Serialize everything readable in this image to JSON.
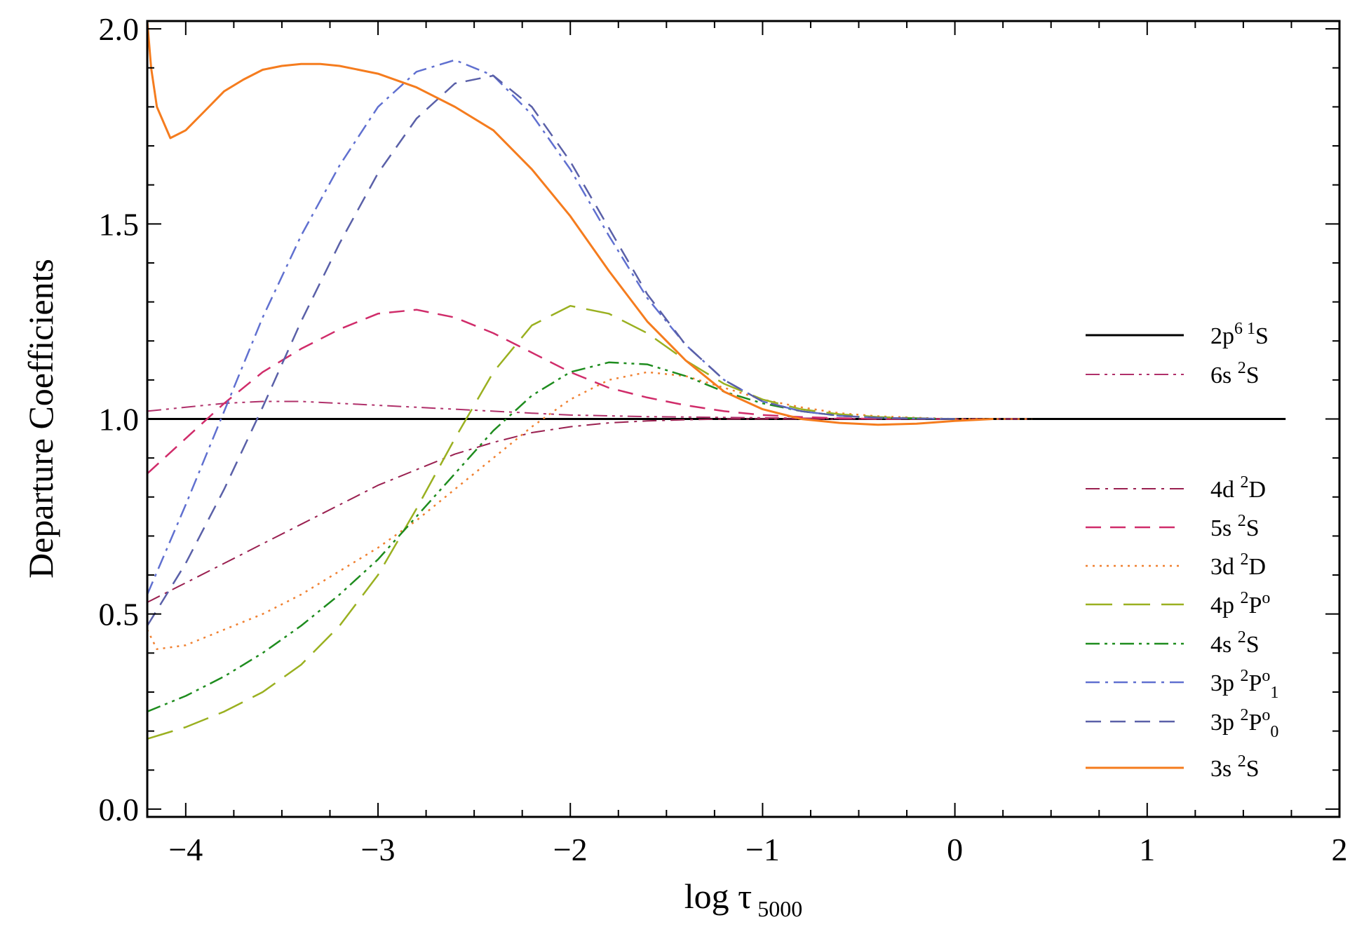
{
  "chart_data": {
    "type": "line",
    "title": "",
    "xlabel": "log τ",
    "xlabel_sub": "5000",
    "ylabel": "Departure Coefficients",
    "xlim": [
      -4.2,
      2
    ],
    "ylim": [
      -0.02,
      2.02
    ],
    "x_ticks": [
      -4,
      -3,
      -2,
      -1,
      0,
      1,
      2
    ],
    "x_tick_labels": [
      "−4",
      "−3",
      "−2",
      "−1",
      "0",
      "1",
      "2"
    ],
    "y_ticks": [
      0.0,
      0.5,
      1.0,
      1.5,
      2.0
    ],
    "y_tick_labels": [
      "0.0",
      "0.5",
      "1.0",
      "1.5",
      "2.0"
    ],
    "grid": false,
    "legend_position": "right",
    "series": [
      {
        "name": "2p6 1S",
        "label_main": "2p",
        "label_sup1": "6 1",
        "label_tail": "S",
        "color": "#000000",
        "dash": "solid",
        "width": 3,
        "x": [
          -4.2,
          1.72
        ],
        "y": [
          1.0,
          1.0
        ]
      },
      {
        "name": "6s 2S",
        "label_main": "6s ",
        "label_sup1": "2",
        "label_tail": "S",
        "color": "#b0306a",
        "dash": "dashdotdot",
        "width": 2,
        "x": [
          -4.2,
          -4.0,
          -3.8,
          -3.6,
          -3.4,
          -3.2,
          -3.0,
          -2.8,
          -2.6,
          -2.4,
          -2.2,
          -2.0,
          -1.8,
          -1.6,
          -1.4,
          -1.2,
          -1.0,
          -0.8,
          -0.6,
          -0.4,
          -0.2,
          0.0,
          0.2,
          0.4
        ],
        "y": [
          1.02,
          1.03,
          1.04,
          1.045,
          1.045,
          1.04,
          1.035,
          1.03,
          1.025,
          1.02,
          1.015,
          1.01,
          1.008,
          1.006,
          1.005,
          1.004,
          1.003,
          1.002,
          1.001,
          1.0,
          1.0,
          1.0,
          1.0,
          1.0
        ]
      },
      {
        "name": "4d 2D",
        "label_main": "4d ",
        "label_sup1": "2",
        "label_tail": "D",
        "color": "#9a2050",
        "dash": "dashdot",
        "width": 2,
        "x": [
          -4.2,
          -4.0,
          -3.8,
          -3.6,
          -3.4,
          -3.2,
          -3.0,
          -2.8,
          -2.6,
          -2.4,
          -2.2,
          -2.0,
          -1.8,
          -1.6,
          -1.4,
          -1.2,
          -1.0,
          -0.8,
          -0.6,
          -0.4,
          -0.2,
          0.0
        ],
        "y": [
          0.53,
          0.58,
          0.63,
          0.68,
          0.73,
          0.78,
          0.83,
          0.87,
          0.91,
          0.94,
          0.965,
          0.98,
          0.99,
          0.995,
          0.998,
          1.0,
          1.0,
          1.0,
          1.0,
          1.0,
          1.0,
          1.0
        ]
      },
      {
        "name": "5s 2S",
        "label_main": "5s ",
        "label_sup1": "2",
        "label_tail": "S",
        "color": "#d02c6a",
        "dash": "dashed",
        "width": 2.5,
        "x": [
          -4.2,
          -4.0,
          -3.8,
          -3.6,
          -3.4,
          -3.2,
          -3.0,
          -2.8,
          -2.6,
          -2.4,
          -2.2,
          -2.0,
          -1.8,
          -1.6,
          -1.4,
          -1.2,
          -1.0,
          -0.8,
          -0.6,
          -0.4,
          -0.2,
          0.0
        ],
        "y": [
          0.86,
          0.95,
          1.04,
          1.12,
          1.18,
          1.23,
          1.27,
          1.28,
          1.26,
          1.22,
          1.17,
          1.12,
          1.08,
          1.055,
          1.035,
          1.02,
          1.01,
          1.005,
          1.002,
          1.0,
          1.0,
          1.0
        ]
      },
      {
        "name": "3d 2D",
        "label_main": "3d ",
        "label_sup1": "2",
        "label_tail": "D",
        "color": "#f08030",
        "dash": "dotted",
        "width": 2.5,
        "x": [
          -4.2,
          -4.15,
          -4.0,
          -3.8,
          -3.6,
          -3.4,
          -3.2,
          -3.0,
          -2.8,
          -2.6,
          -2.4,
          -2.2,
          -2.0,
          -1.8,
          -1.6,
          -1.4,
          -1.2,
          -1.0,
          -0.8,
          -0.6,
          -0.4,
          -0.2,
          0.0,
          0.2,
          0.4
        ],
        "y": [
          0.46,
          0.41,
          0.42,
          0.46,
          0.5,
          0.55,
          0.61,
          0.67,
          0.74,
          0.82,
          0.9,
          0.98,
          1.05,
          1.1,
          1.12,
          1.11,
          1.08,
          1.05,
          1.03,
          1.015,
          1.007,
          1.003,
          1.0,
          1.0,
          1.0
        ]
      },
      {
        "name": "4p 2Po",
        "label_main": "4p ",
        "label_sup1": "2",
        "label_tail": "P",
        "label_sup2": "o",
        "color": "#9ab020",
        "dash": "longdash",
        "width": 2.5,
        "x": [
          -4.2,
          -4.0,
          -3.8,
          -3.6,
          -3.4,
          -3.2,
          -3.0,
          -2.8,
          -2.6,
          -2.4,
          -2.2,
          -2.0,
          -1.8,
          -1.6,
          -1.4,
          -1.2,
          -1.0,
          -0.8,
          -0.6,
          -0.4,
          -0.2,
          0.0
        ],
        "y": [
          0.18,
          0.21,
          0.25,
          0.3,
          0.37,
          0.47,
          0.6,
          0.77,
          0.95,
          1.12,
          1.24,
          1.29,
          1.27,
          1.22,
          1.15,
          1.09,
          1.05,
          1.025,
          1.012,
          1.005,
          1.002,
          1.0
        ]
      },
      {
        "name": "4s 2S",
        "label_main": "4s ",
        "label_sup1": "2",
        "label_tail": "S",
        "color": "#1e8c1e",
        "dash": "dashdotdot",
        "width": 2.5,
        "x": [
          -4.2,
          -4.0,
          -3.8,
          -3.6,
          -3.4,
          -3.2,
          -3.0,
          -2.8,
          -2.6,
          -2.4,
          -2.2,
          -2.0,
          -1.8,
          -1.6,
          -1.4,
          -1.2,
          -1.0,
          -0.8,
          -0.6,
          -0.4,
          -0.2,
          0.0
        ],
        "y": [
          0.25,
          0.29,
          0.34,
          0.4,
          0.47,
          0.55,
          0.64,
          0.75,
          0.86,
          0.97,
          1.06,
          1.12,
          1.145,
          1.14,
          1.11,
          1.07,
          1.04,
          1.02,
          1.008,
          1.003,
          1.001,
          1.0
        ]
      },
      {
        "name": "3p 2Po1",
        "label_main": "3p ",
        "label_sup1": "2",
        "label_tail": "P",
        "label_sup2": "o",
        "label_sub": "1",
        "color": "#6070d0",
        "dash": "dashdot",
        "width": 2.5,
        "x": [
          -4.2,
          -4.0,
          -3.8,
          -3.6,
          -3.4,
          -3.2,
          -3.0,
          -2.8,
          -2.6,
          -2.4,
          -2.2,
          -2.0,
          -1.8,
          -1.6,
          -1.4,
          -1.2,
          -1.0,
          -0.8,
          -0.6,
          -0.4,
          -0.2,
          0.0
        ],
        "y": [
          0.55,
          0.78,
          1.02,
          1.26,
          1.47,
          1.65,
          1.8,
          1.89,
          1.92,
          1.88,
          1.78,
          1.64,
          1.47,
          1.31,
          1.19,
          1.1,
          1.045,
          1.02,
          1.008,
          1.003,
          1.001,
          1.0
        ]
      },
      {
        "name": "3p 2Po0",
        "label_main": "3p ",
        "label_sup1": "2",
        "label_tail": "P",
        "label_sup2": "o",
        "label_sub": "0",
        "color": "#5a60a8",
        "dash": "dashed",
        "width": 2.5,
        "x": [
          -4.2,
          -4.0,
          -3.8,
          -3.6,
          -3.4,
          -3.2,
          -3.0,
          -2.8,
          -2.6,
          -2.4,
          -2.2,
          -2.0,
          -1.8,
          -1.6,
          -1.4,
          -1.2,
          -1.0,
          -0.8,
          -0.6,
          -0.4,
          -0.2,
          0.0
        ],
        "y": [
          0.47,
          0.63,
          0.82,
          1.03,
          1.25,
          1.45,
          1.63,
          1.77,
          1.86,
          1.88,
          1.8,
          1.66,
          1.49,
          1.32,
          1.19,
          1.1,
          1.045,
          1.02,
          1.008,
          1.003,
          1.001,
          1.0
        ]
      },
      {
        "name": "3s 2S",
        "label_main": "3s ",
        "label_sup1": "2",
        "label_tail": "S",
        "color": "#f57c1e",
        "dash": "solid",
        "width": 3,
        "x": [
          -4.2,
          -4.18,
          -4.15,
          -4.08,
          -4.0,
          -3.9,
          -3.8,
          -3.7,
          -3.6,
          -3.5,
          -3.4,
          -3.3,
          -3.2,
          -3.0,
          -2.8,
          -2.6,
          -2.4,
          -2.2,
          -2.0,
          -1.8,
          -1.6,
          -1.4,
          -1.2,
          -1.0,
          -0.8,
          -0.6,
          -0.4,
          -0.2,
          0.0,
          0.2
        ],
        "y": [
          2.02,
          1.9,
          1.8,
          1.72,
          1.74,
          1.79,
          1.84,
          1.87,
          1.895,
          1.905,
          1.91,
          1.91,
          1.905,
          1.885,
          1.85,
          1.8,
          1.74,
          1.64,
          1.52,
          1.38,
          1.25,
          1.15,
          1.07,
          1.025,
          1.0,
          0.99,
          0.985,
          0.988,
          0.995,
          1.0
        ]
      }
    ]
  }
}
